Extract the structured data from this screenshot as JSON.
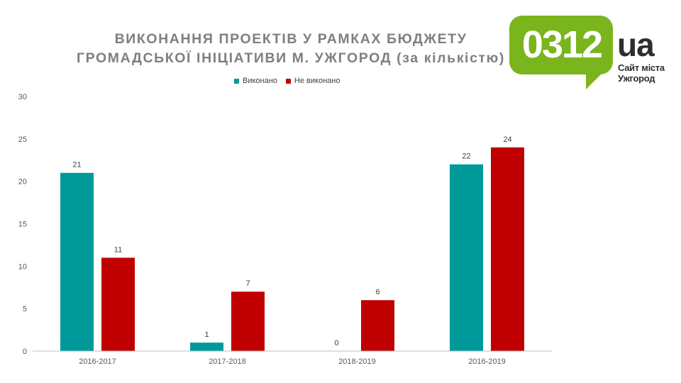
{
  "chart_data": {
    "type": "bar",
    "title_line1": "ВИКОНАННЯ ПРОЕКТІВ У РАМКАХ БЮДЖЕТУ",
    "title_line2": "ГРОМАДСЬКОЇ ІНІЦІАТИВИ М. УЖГОРОД (за кількістю)",
    "categories": [
      "2016-2017",
      "2017-2018",
      "2018-2019",
      "2016-2019"
    ],
    "series": [
      {
        "name": "Виконано",
        "color": "#00999a",
        "values": [
          21,
          1,
          0,
          22
        ]
      },
      {
        "name": "Не виконано",
        "color": "#c00000",
        "values": [
          11,
          7,
          6,
          24
        ]
      }
    ],
    "ylim": [
      0,
      30
    ],
    "yticks": [
      0,
      5,
      10,
      15,
      20,
      25,
      30
    ],
    "grid": false,
    "legend_position": "top"
  },
  "logo": {
    "number": "0312",
    "suffix": "ua",
    "tagline_line1": "Сайт міста",
    "tagline_line2": "Ужгород"
  }
}
